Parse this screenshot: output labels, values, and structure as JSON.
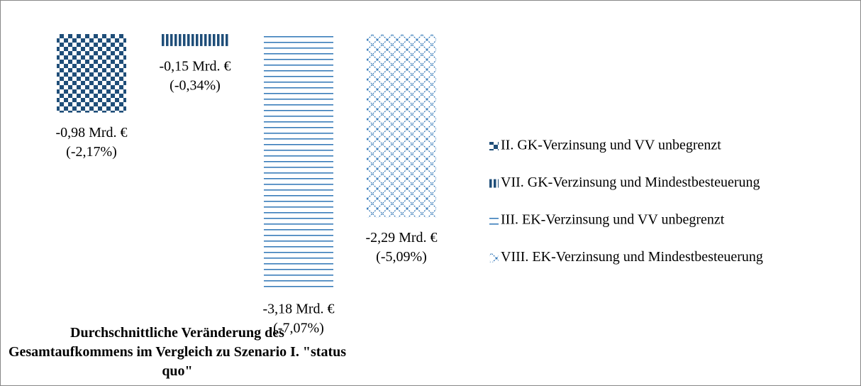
{
  "chart_data": {
    "type": "bar",
    "title": "Durchschnittliche Veränderung des Gesamtaufkommens im Vergleich zu Szenario I. \"status quo\"",
    "ylim": [
      -3.5,
      0
    ],
    "legend": "right",
    "series": [
      {
        "name": "II. GK-Verzinsung und VV unbegrenzt",
        "color": "#1f4e79",
        "pattern": "checker",
        "values": [
          -0.98
        ],
        "value_labels": [
          "-0,98 Mrd. €"
        ],
        "share_labels": [
          "(-2,17%)"
        ]
      },
      {
        "name": "VII. GK-Verzinsung und Mindestbesteuerung",
        "color": "#1f4e79",
        "pattern": "vertical",
        "values": [
          -0.15
        ],
        "value_labels": [
          "-0,15 Mrd. €"
        ],
        "share_labels": [
          "(-0,34%)"
        ]
      },
      {
        "name": "III. EK-Verzinsung und VV unbegrenzt",
        "color": "#2e75b6",
        "pattern": "horizontal",
        "values": [
          -3.18
        ],
        "value_labels": [
          "-3,18 Mrd. €"
        ],
        "share_labels": [
          "(-7,07%)"
        ]
      },
      {
        "name": "VIII. EK-Verzinsung und Mindestbesteuerung",
        "color": "#2e75b6",
        "pattern": "lattice",
        "values": [
          -2.29
        ],
        "value_labels": [
          "-2,29 Mrd. €"
        ],
        "share_labels": [
          "(-5,09%)"
        ]
      }
    ]
  }
}
